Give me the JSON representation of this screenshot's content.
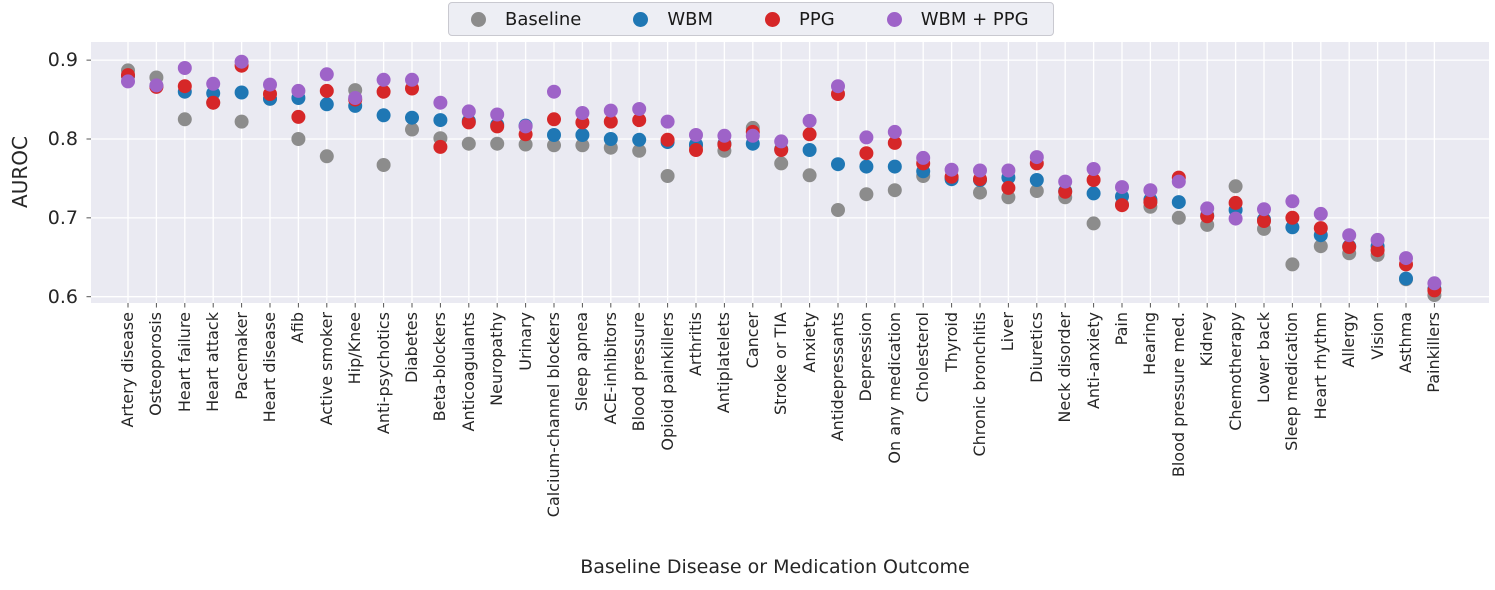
{
  "chart_data": {
    "type": "scatter",
    "title": "",
    "xlabel": "Baseline Disease or Medication Outcome",
    "ylabel": "AUROC",
    "ylim": [
      0.592,
      0.923
    ],
    "yticks": [
      0.9,
      0.8,
      0.7,
      0.6
    ],
    "grid": true,
    "legend_position": "top-center-horizontal",
    "plot_background": "#eaeaf2",
    "grid_color": "#ffffff",
    "categories": [
      "Artery disease",
      "Osteoporosis",
      "Heart failure",
      "Heart attack",
      "Pacemaker",
      "Heart disease",
      "Afib",
      "Active smoker",
      "Hip/Knee",
      "Anti-psychotics",
      "Diabetes",
      "Beta-blockers",
      "Anticoagulants",
      "Neuropathy",
      "Urinary",
      "Calcium-channel blockers",
      "Sleep apnea",
      "ACE-inhibitors",
      "Blood pressure",
      "Opioid painkillers",
      "Arthritis",
      "Antiplatelets",
      "Cancer",
      "Stroke or TIA",
      "Anxiety",
      "Antidepressants",
      "Depression",
      "On any medication",
      "Cholesterol",
      "Thyroid",
      "Chronic bronchitis",
      "Liver",
      "Diuretics",
      "Neck disorder",
      "Anti-anxiety",
      "Pain",
      "Hearing",
      "Blood pressure med.",
      "Kidney",
      "Chemotherapy",
      "Lower back",
      "Sleep medication",
      "Heart rhythm",
      "Allergy",
      "Vision",
      "Asthma",
      "Painkillers"
    ],
    "series": [
      {
        "name": "Baseline",
        "color": "#8c8c8c",
        "values": [
          0.887,
          0.878,
          0.825,
          0.846,
          0.822,
          0.851,
          0.8,
          0.778,
          0.862,
          0.767,
          0.812,
          0.801,
          0.794,
          0.794,
          0.793,
          0.792,
          0.792,
          0.789,
          0.785,
          0.753,
          0.791,
          0.785,
          0.814,
          0.769,
          0.754,
          0.71,
          0.73,
          0.735,
          0.753,
          0.751,
          0.732,
          0.726,
          0.734,
          0.726,
          0.693,
          0.717,
          0.714,
          0.7,
          0.691,
          0.74,
          0.686,
          0.641,
          0.664,
          0.655,
          0.653,
          0.622,
          0.602
        ]
      },
      {
        "name": "WBM",
        "color": "#1f77b4",
        "values": [
          0.88,
          0.867,
          0.86,
          0.858,
          0.859,
          0.851,
          0.852,
          0.844,
          0.842,
          0.83,
          0.827,
          0.824,
          0.823,
          0.818,
          0.817,
          0.805,
          0.805,
          0.8,
          0.799,
          0.796,
          0.793,
          0.794,
          0.794,
          0.787,
          0.786,
          0.768,
          0.765,
          0.765,
          0.759,
          0.749,
          0.748,
          0.751,
          0.748,
          0.734,
          0.731,
          0.727,
          0.723,
          0.72,
          0.703,
          0.71,
          0.698,
          0.688,
          0.678,
          0.664,
          0.664,
          0.623,
          0.61
        ]
      },
      {
        "name": "PPG",
        "color": "#d62728",
        "values": [
          0.881,
          0.866,
          0.867,
          0.846,
          0.893,
          0.857,
          0.828,
          0.861,
          0.85,
          0.86,
          0.864,
          0.79,
          0.821,
          0.816,
          0.806,
          0.825,
          0.821,
          0.822,
          0.824,
          0.799,
          0.786,
          0.793,
          0.809,
          0.786,
          0.806,
          0.857,
          0.782,
          0.795,
          0.769,
          0.752,
          0.749,
          0.738,
          0.769,
          0.733,
          0.748,
          0.716,
          0.72,
          0.751,
          0.702,
          0.719,
          0.696,
          0.7,
          0.687,
          0.663,
          0.659,
          0.641,
          0.608
        ]
      },
      {
        "name": "WBM + PPG",
        "color": "#9e63c8",
        "values": [
          0.873,
          0.868,
          0.89,
          0.87,
          0.898,
          0.869,
          0.861,
          0.882,
          0.852,
          0.875,
          0.875,
          0.846,
          0.835,
          0.831,
          0.816,
          0.86,
          0.833,
          0.836,
          0.838,
          0.822,
          0.805,
          0.804,
          0.804,
          0.797,
          0.823,
          0.867,
          0.802,
          0.809,
          0.776,
          0.761,
          0.76,
          0.76,
          0.777,
          0.746,
          0.762,
          0.739,
          0.735,
          0.746,
          0.712,
          0.699,
          0.711,
          0.721,
          0.705,
          0.678,
          0.672,
          0.649,
          0.617
        ]
      }
    ]
  }
}
